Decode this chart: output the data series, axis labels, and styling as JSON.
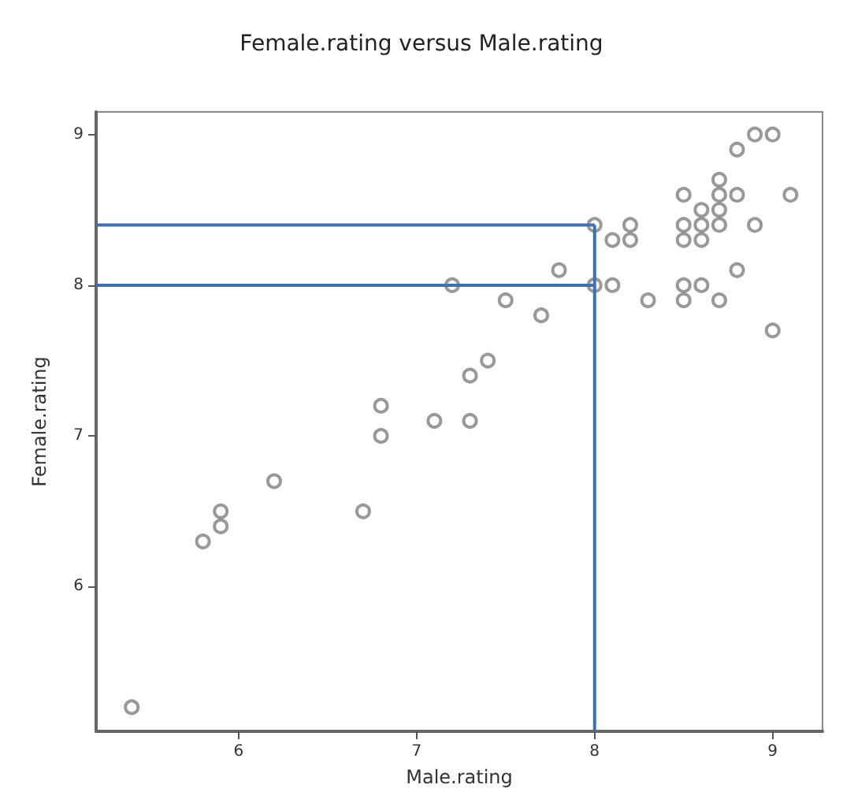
{
  "chart_data": {
    "type": "scatter",
    "title": "Female.rating versus Male.rating",
    "xlabel": "Male.rating",
    "ylabel": "Female.rating",
    "xlim": [
      5.2,
      9.28
    ],
    "ylim": [
      5.04,
      9.15
    ],
    "xticks": [
      6,
      7,
      8,
      9
    ],
    "yticks": [
      6,
      7,
      8,
      9
    ],
    "grid": false,
    "marker": "circle",
    "series": [
      {
        "color": "#808080",
        "x": [
          5.4,
          5.8,
          5.9,
          5.9,
          6.2,
          6.7,
          6.8,
          6.8,
          7.1,
          7.3,
          7.3,
          7.4,
          7.2,
          7.5,
          7.7,
          7.8,
          8.0,
          8.0,
          8.1,
          8.1,
          8.2,
          8.2,
          8.3,
          8.5,
          8.5,
          8.5,
          8.5,
          8.5,
          8.6,
          8.6,
          8.6,
          8.6,
          8.7,
          8.7,
          8.7,
          8.7,
          8.7,
          8.8,
          8.8,
          8.8,
          8.9,
          8.9,
          9.0,
          9.0,
          9.1
        ],
        "values": [
          5.2,
          6.3,
          6.5,
          6.4,
          6.7,
          6.5,
          7.2,
          7.0,
          7.1,
          7.1,
          7.4,
          7.5,
          8.0,
          7.9,
          7.8,
          8.1,
          8.0,
          8.4,
          8.0,
          8.3,
          8.3,
          8.4,
          7.9,
          8.6,
          8.4,
          8.3,
          8.0,
          7.9,
          8.5,
          8.4,
          8.3,
          8.0,
          8.7,
          8.6,
          8.5,
          8.4,
          7.9,
          8.9,
          8.6,
          8.1,
          9.0,
          8.4,
          9.0,
          7.7,
          8.6
        ]
      }
    ],
    "ref_lines": [
      {
        "axis": "y",
        "value": 8.4,
        "color": "#3f6fb5"
      },
      {
        "axis": "y",
        "value": 8.0,
        "color": "#3f6fb5"
      },
      {
        "axis": "x",
        "value": 8.0,
        "color": "#3f6fb5"
      }
    ]
  }
}
